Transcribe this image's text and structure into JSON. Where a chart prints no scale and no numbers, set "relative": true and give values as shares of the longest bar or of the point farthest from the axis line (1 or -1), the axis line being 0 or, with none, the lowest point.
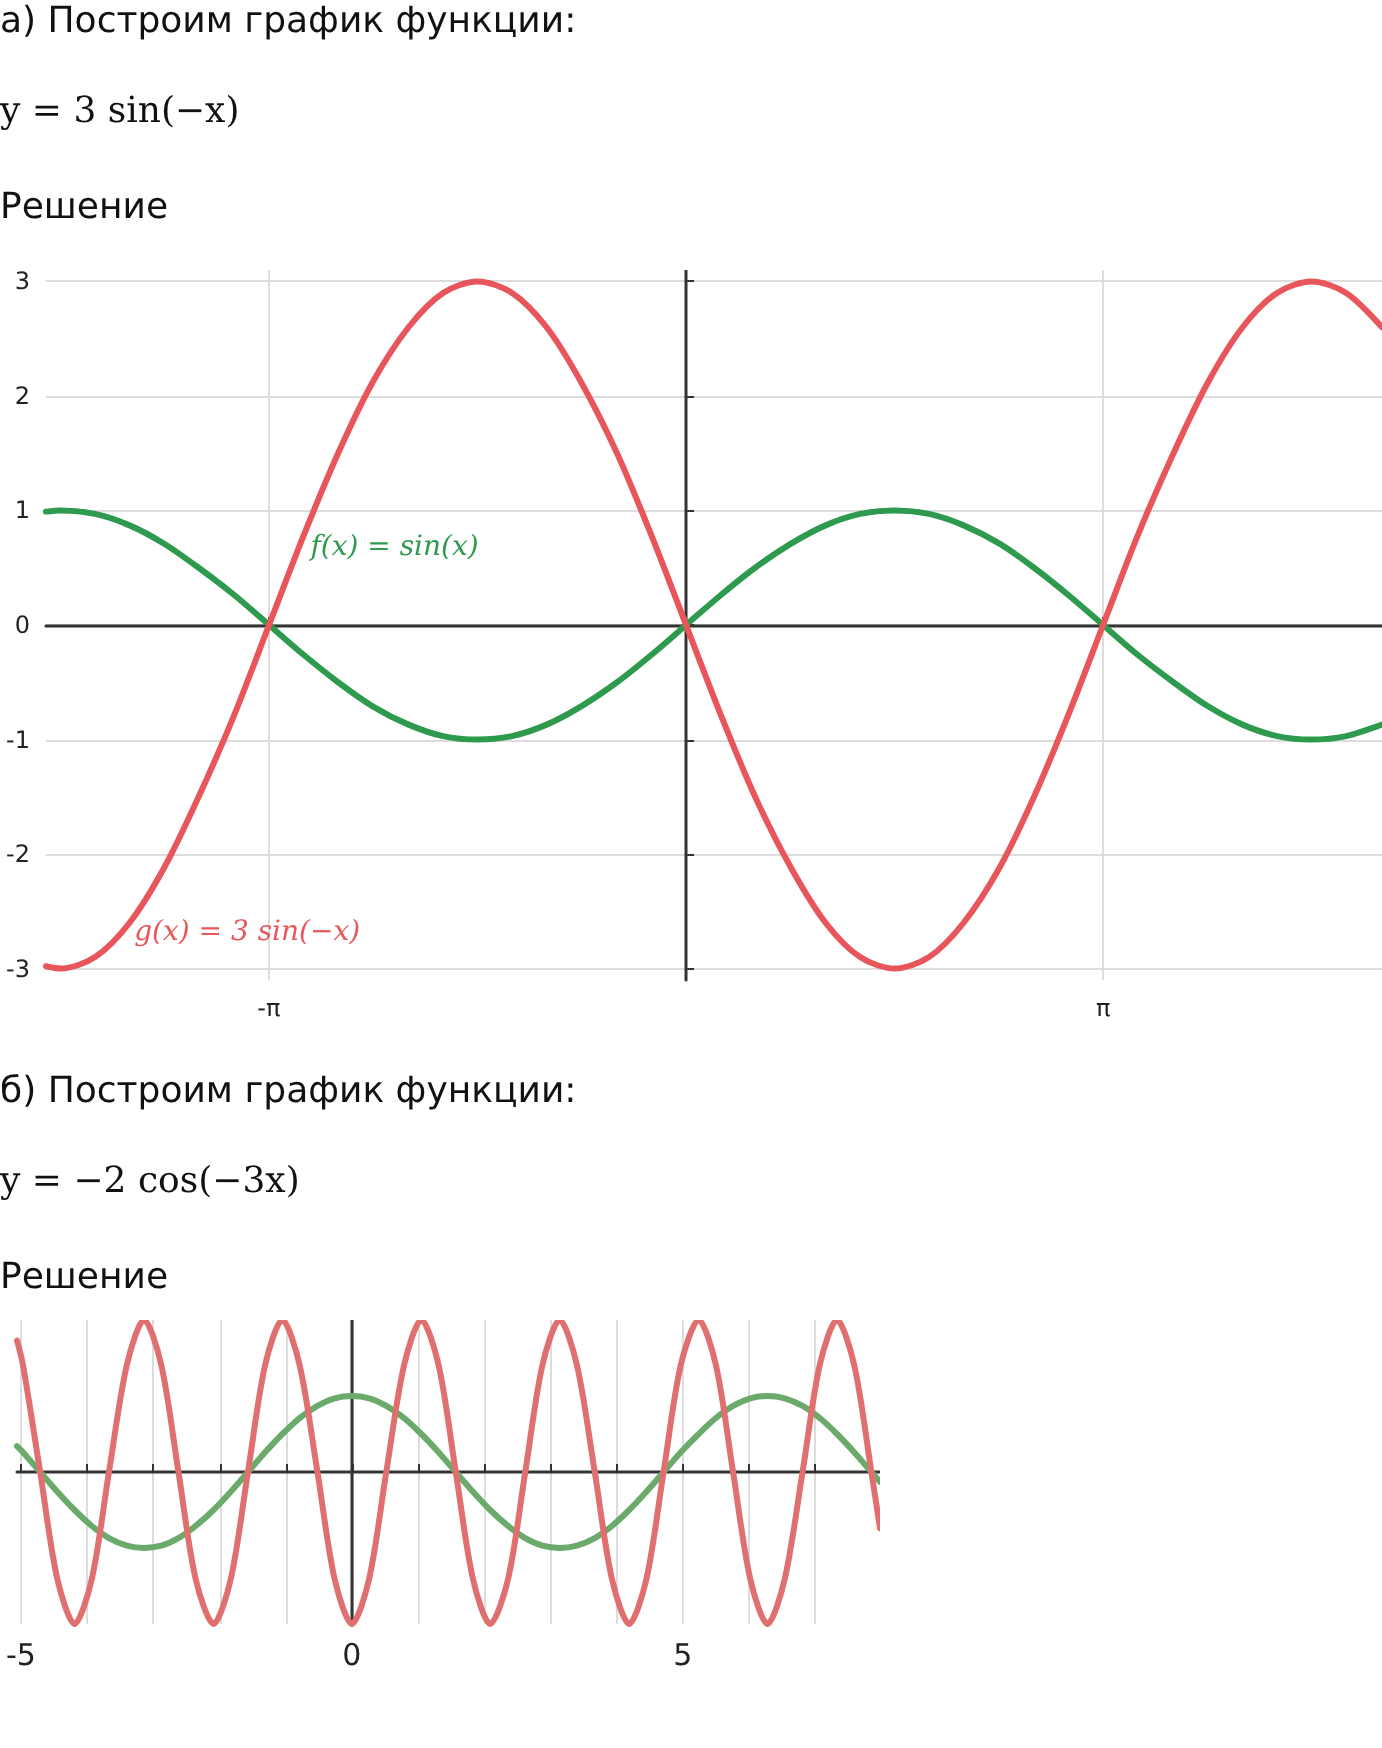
{
  "chart_data": [
    {
      "type": "line",
      "title": "а) Построим график функции:",
      "subtitle": "y = 3 sin(−x)",
      "annotations": [
        "Решение"
      ],
      "marker": "none",
      "grid": true,
      "legend": false,
      "xlim": [
        -4.82,
        5.24
      ],
      "ylim": [
        -3.1,
        3.1
      ],
      "xticks": [
        {
          "value": -3.14159,
          "label": "-π"
        },
        {
          "value": 3.14159,
          "label": "π"
        }
      ],
      "yticks": [
        -3,
        -2,
        -1,
        0,
        1,
        2,
        3
      ],
      "x": [
        -4.82,
        -4.71,
        -4.45,
        -4.19,
        -3.93,
        -3.67,
        -3.4,
        -3.14,
        -2.88,
        -2.62,
        -2.36,
        -2.09,
        -1.83,
        -1.57,
        -1.31,
        -1.05,
        -0.79,
        -0.52,
        -0.26,
        0,
        0.26,
        0.52,
        0.79,
        1.05,
        1.31,
        1.57,
        1.83,
        2.09,
        2.36,
        2.62,
        2.88,
        3.14,
        3.4,
        3.67,
        3.93,
        4.19,
        4.45,
        4.71,
        4.97,
        5.24
      ],
      "series": [
        {
          "name": "f(x) = sin(x)",
          "color": "#2e9a4e",
          "values": [
            0.99,
            1,
            0.97,
            0.87,
            0.71,
            0.5,
            0.26,
            0,
            -0.26,
            -0.5,
            -0.71,
            -0.87,
            -0.97,
            -1,
            -0.97,
            -0.87,
            -0.71,
            -0.5,
            -0.26,
            0,
            0.26,
            0.5,
            0.71,
            0.87,
            0.97,
            1,
            0.97,
            0.87,
            0.71,
            0.5,
            0.26,
            0,
            -0.26,
            -0.5,
            -0.71,
            -0.87,
            -0.97,
            -1,
            -0.97,
            -0.87
          ]
        },
        {
          "name": "g(x) = 3 sin(−x)",
          "color": "#e8555a",
          "values": [
            -2.98,
            -3,
            -2.9,
            -2.6,
            -2.12,
            -1.5,
            -0.78,
            0,
            0.78,
            1.5,
            2.12,
            2.6,
            2.9,
            3,
            2.9,
            2.6,
            2.12,
            1.5,
            0.78,
            0,
            -0.78,
            -1.5,
            -2.12,
            -2.6,
            -2.9,
            -3,
            -2.9,
            -2.6,
            -2.12,
            -1.5,
            -0.78,
            0,
            0.78,
            1.5,
            2.12,
            2.6,
            2.9,
            3,
            2.9,
            2.6
          ]
        }
      ]
    },
    {
      "type": "line",
      "title": "б) Построим график функции:",
      "subtitle": "y = −2 cos(−3x)",
      "annotations": [
        "Решение"
      ],
      "marker": "none",
      "grid": "x",
      "legend": false,
      "relative": true,
      "xlim": [
        -5.06,
        7.98
      ],
      "xticks": [
        -5,
        {
          "value": -4,
          "label": null
        },
        {
          "value": -3,
          "label": null
        },
        {
          "value": -2,
          "label": null
        },
        {
          "value": -1,
          "label": null
        },
        0,
        {
          "value": 1,
          "label": null
        },
        {
          "value": 2,
          "label": null
        },
        {
          "value": 3,
          "label": null
        },
        {
          "value": 4,
          "label": null
        },
        5,
        {
          "value": 6,
          "label": null
        },
        {
          "value": 7,
          "label": null
        }
      ],
      "x": [
        -5.06,
        -4.97,
        -4.71,
        -4.45,
        -4.19,
        -3.93,
        -3.67,
        -3.4,
        -3.14,
        -2.88,
        -2.62,
        -2.36,
        -2.09,
        -1.83,
        -1.57,
        -1.31,
        -1.05,
        -0.79,
        -0.52,
        -0.26,
        0,
        0.26,
        0.52,
        0.79,
        1.05,
        1.31,
        1.57,
        1.83,
        2.09,
        2.36,
        2.62,
        2.88,
        3.14,
        3.4,
        3.67,
        3.93,
        4.19,
        4.45,
        4.71,
        4.97,
        5.24,
        5.5,
        5.76,
        6.02,
        6.28,
        6.54,
        6.81,
        7.07,
        7.33,
        7.59,
        7.85,
        7.98
      ],
      "series": [
        {
          "color": "#6aaa6a",
          "values": [
            0.17,
            0.13,
            0,
            -0.13,
            -0.25,
            -0.355,
            -0.435,
            -0.485,
            -0.5,
            -0.485,
            -0.435,
            -0.355,
            -0.25,
            -0.13,
            0,
            0.13,
            0.25,
            0.355,
            0.435,
            0.485,
            0.5,
            0.485,
            0.435,
            0.355,
            0.25,
            0.13,
            0,
            -0.13,
            -0.25,
            -0.355,
            -0.435,
            -0.485,
            -0.5,
            -0.485,
            -0.435,
            -0.355,
            -0.25,
            -0.13,
            0,
            0.13,
            0.25,
            0.355,
            0.435,
            0.485,
            0.5,
            0.485,
            0.435,
            0.355,
            0.25,
            0.13,
            0,
            -0.065
          ]
        },
        {
          "color": "#e07070",
          "values": [
            0.865,
            0.705,
            0,
            -0.705,
            -1,
            -0.705,
            0,
            0.705,
            1,
            0.705,
            0,
            -0.705,
            -1,
            -0.705,
            0,
            0.705,
            1,
            0.705,
            0,
            -0.705,
            -1,
            -0.705,
            0,
            0.705,
            1,
            0.705,
            0,
            -0.705,
            -1,
            -0.705,
            0,
            0.705,
            1,
            0.705,
            0,
            -0.705,
            -1,
            -0.705,
            0,
            0.705,
            1,
            0.705,
            0,
            -0.705,
            -1,
            -0.705,
            0,
            0.705,
            1,
            0.705,
            0,
            -0.37
          ]
        }
      ]
    }
  ]
}
